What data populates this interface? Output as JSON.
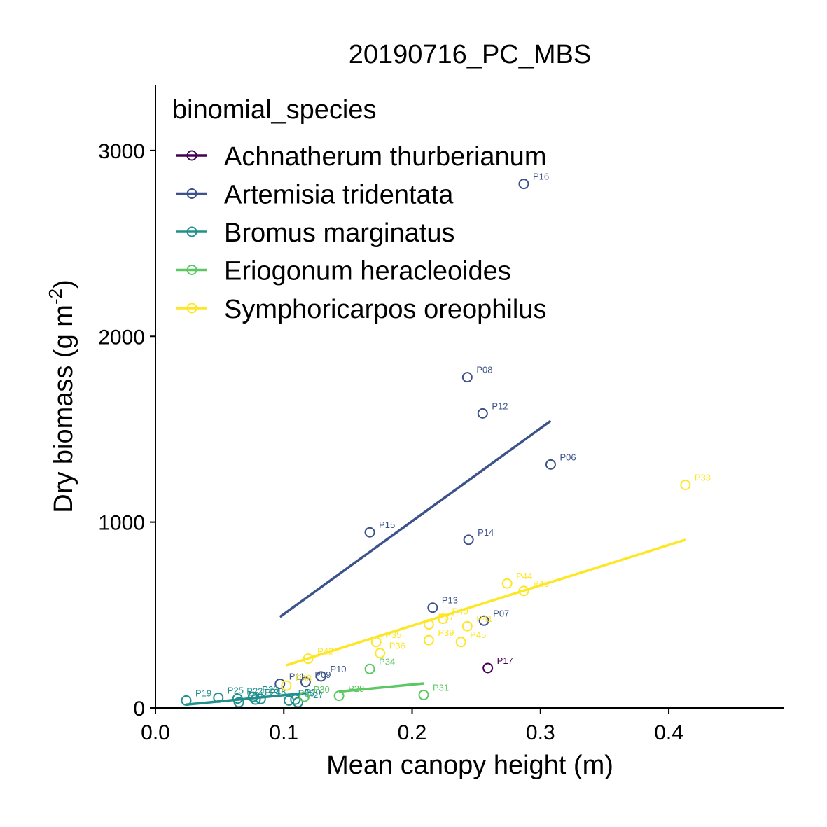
{
  "chart_data": {
    "type": "scatter",
    "title": "20190716_PC_MBS",
    "xlabel": "Mean canopy height (m)",
    "ylabel": "Dry biomass (g m-2)",
    "ylabel_main": "Dry biomass (g m",
    "ylabel_sup": "-2",
    "ylabel_close": ")",
    "xlim": [
      0,
      0.49
    ],
    "ylim": [
      0,
      3350
    ],
    "x_ticks": [
      "0.0",
      "0.1",
      "0.2",
      "0.3",
      "0.4"
    ],
    "y_ticks": [
      "0",
      "1000",
      "2000",
      "3000"
    ],
    "grid": false,
    "legend": {
      "title": "binomial_species",
      "position": "top-left"
    },
    "series": [
      {
        "name": "Achnatherum thurberianum",
        "color": "#440154",
        "points": [
          {
            "label": "P17",
            "x": 0.259,
            "y": 215
          }
        ],
        "fit": null
      },
      {
        "name": "Artemisia tridentata",
        "color": "#3B528B",
        "points": [
          {
            "label": "P16",
            "x": 0.287,
            "y": 2820
          },
          {
            "label": "P08",
            "x": 0.243,
            "y": 1780
          },
          {
            "label": "P12",
            "x": 0.255,
            "y": 1585
          },
          {
            "label": "P06",
            "x": 0.308,
            "y": 1310
          },
          {
            "label": "P15",
            "x": 0.167,
            "y": 945
          },
          {
            "label": "P14",
            "x": 0.244,
            "y": 905
          },
          {
            "label": "P13",
            "x": 0.216,
            "y": 540
          },
          {
            "label": "P07",
            "x": 0.256,
            "y": 470
          },
          {
            "label": "P10",
            "x": 0.129,
            "y": 170
          },
          {
            "label": "P09",
            "x": 0.117,
            "y": 140
          },
          {
            "label": "P11",
            "x": 0.097,
            "y": 130
          }
        ],
        "fit": {
          "x": [
            0.097,
            0.308
          ],
          "y": [
            490,
            1545
          ]
        }
      },
      {
        "name": "Bromus marginatus",
        "color": "#21908C",
        "points": [
          {
            "label": "P19",
            "x": 0.024,
            "y": 40
          },
          {
            "label": "P25",
            "x": 0.049,
            "y": 55
          },
          {
            "label": "P22",
            "x": 0.064,
            "y": 50
          },
          {
            "label": "P21",
            "x": 0.065,
            "y": 30
          },
          {
            "label": "P23",
            "x": 0.076,
            "y": 60
          },
          {
            "label": "P24",
            "x": 0.078,
            "y": 45
          },
          {
            "label": "P18",
            "x": 0.082,
            "y": 48
          },
          {
            "label": "P26",
            "x": 0.104,
            "y": 40
          },
          {
            "label": "P20",
            "x": 0.109,
            "y": 45
          },
          {
            "label": "P27",
            "x": 0.111,
            "y": 30
          }
        ],
        "fit": {
          "x": [
            0.024,
            0.117
          ],
          "y": [
            18,
            80
          ]
        }
      },
      {
        "name": "Eriogonum heracleoides",
        "color": "#5DC863",
        "points": [
          {
            "label": "P34",
            "x": 0.167,
            "y": 210
          },
          {
            "label": "P28",
            "x": 0.143,
            "y": 65
          },
          {
            "label": "P31",
            "x": 0.209,
            "y": 70
          },
          {
            "label": "P30",
            "x": 0.116,
            "y": 60
          }
        ],
        "fit": {
          "x": [
            0.143,
            0.209
          ],
          "y": [
            88,
            132
          ]
        }
      },
      {
        "name": "Symphoricarpos oreophilus",
        "color": "#FDE725",
        "points": [
          {
            "label": "P33",
            "x": 0.413,
            "y": 1200
          },
          {
            "label": "P44",
            "x": 0.274,
            "y": 670
          },
          {
            "label": "P43",
            "x": 0.287,
            "y": 630
          },
          {
            "label": "P40",
            "x": 0.224,
            "y": 480
          },
          {
            "label": "P37",
            "x": 0.213,
            "y": 450
          },
          {
            "label": "P41",
            "x": 0.243,
            "y": 440
          },
          {
            "label": "P39",
            "x": 0.213,
            "y": 365
          },
          {
            "label": "P45",
            "x": 0.238,
            "y": 355
          },
          {
            "label": "P35",
            "x": 0.172,
            "y": 355
          },
          {
            "label": "P36",
            "x": 0.175,
            "y": 295
          },
          {
            "label": "P42",
            "x": 0.119,
            "y": 265
          },
          {
            "label": "P38",
            "x": 0.102,
            "y": 120
          }
        ],
        "fit": {
          "x": [
            0.102,
            0.413
          ],
          "y": [
            230,
            905
          ]
        }
      }
    ]
  }
}
